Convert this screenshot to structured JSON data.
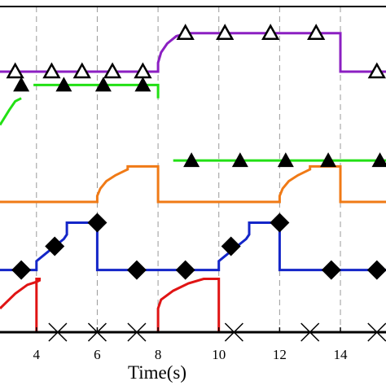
{
  "chart_data": {
    "type": "line",
    "title": "",
    "xlabel": "Time(s)",
    "ylabel": "",
    "xlim": [
      2.8,
      15.5
    ],
    "ylim": [
      0,
      11
    ],
    "x_ticks": [
      4,
      6,
      8,
      10,
      12,
      14
    ],
    "grid": "vertical dashed",
    "colors": {
      "purple": "#8b1fc2",
      "green": "#22e014",
      "orange": "#f07a16",
      "blue": "#1426c8",
      "red": "#e01414",
      "black": "#000000"
    },
    "series": [
      {
        "color": "purple",
        "marker": "open-triangle",
        "points": [
          [
            2.8,
            8.8
          ],
          [
            8.0,
            8.8
          ],
          [
            8.0,
            9.1
          ],
          [
            8.1,
            9.45
          ],
          [
            8.3,
            9.75
          ],
          [
            8.6,
            10.0
          ],
          [
            8.8,
            10.05
          ],
          [
            8.85,
            10.1
          ],
          [
            14.0,
            10.1
          ],
          [
            14.0,
            8.8
          ],
          [
            15.5,
            8.8
          ]
        ],
        "markers": [
          [
            3.3,
            8.8
          ],
          [
            4.5,
            8.8
          ],
          [
            5.5,
            8.8
          ],
          [
            6.5,
            8.8
          ],
          [
            7.5,
            8.8
          ],
          [
            8.9,
            10.1
          ],
          [
            10.2,
            10.1
          ],
          [
            11.7,
            10.1
          ],
          [
            13.2,
            10.1
          ],
          [
            15.2,
            8.8
          ]
        ]
      },
      {
        "color": "green",
        "marker": "filled-triangle",
        "segments": [
          [
            [
              2.8,
              7.0
            ],
            [
              3.1,
              7.5
            ],
            [
              3.3,
              7.8
            ],
            [
              3.5,
              7.9
            ]
          ],
          [
            [
              3.9,
              8.35
            ],
            [
              8.0,
              8.35
            ],
            [
              8.0,
              7.9
            ]
          ],
          [
            [
              8.5,
              5.8
            ],
            [
              15.5,
              5.8
            ]
          ]
        ],
        "markers": [
          [
            3.5,
            8.35
          ],
          [
            4.9,
            8.35
          ],
          [
            6.2,
            8.35
          ],
          [
            7.5,
            8.35
          ],
          [
            9.1,
            5.8
          ],
          [
            10.7,
            5.8
          ],
          [
            12.2,
            5.8
          ],
          [
            13.6,
            5.8
          ],
          [
            15.3,
            5.8
          ]
        ]
      },
      {
        "color": "orange",
        "marker": "none",
        "points": [
          [
            2.8,
            4.4
          ],
          [
            6.0,
            4.4
          ],
          [
            6.0,
            4.6
          ],
          [
            6.1,
            4.85
          ],
          [
            6.3,
            5.1
          ],
          [
            6.6,
            5.3
          ],
          [
            6.9,
            5.45
          ],
          [
            7.0,
            5.5
          ],
          [
            7.0,
            5.6
          ],
          [
            8.0,
            5.6
          ],
          [
            8.0,
            4.4
          ],
          [
            12.0,
            4.4
          ],
          [
            12.0,
            4.6
          ],
          [
            12.1,
            4.85
          ],
          [
            12.3,
            5.1
          ],
          [
            12.6,
            5.3
          ],
          [
            12.9,
            5.45
          ],
          [
            13.0,
            5.5
          ],
          [
            13.0,
            5.6
          ],
          [
            14.0,
            5.6
          ],
          [
            14.0,
            4.4
          ],
          [
            15.5,
            4.4
          ]
        ]
      },
      {
        "color": "blue",
        "marker": "filled-diamond",
        "points": [
          [
            2.8,
            2.1
          ],
          [
            4.0,
            2.1
          ],
          [
            4.0,
            2.4
          ],
          [
            4.3,
            2.65
          ],
          [
            4.6,
            2.9
          ],
          [
            4.9,
            3.15
          ],
          [
            5.0,
            3.3
          ],
          [
            5.0,
            3.7
          ],
          [
            6.0,
            3.7
          ],
          [
            6.0,
            2.1
          ],
          [
            10.0,
            2.1
          ],
          [
            10.0,
            2.4
          ],
          [
            10.3,
            2.65
          ],
          [
            10.6,
            2.9
          ],
          [
            10.9,
            3.15
          ],
          [
            11.0,
            3.3
          ],
          [
            11.0,
            3.7
          ],
          [
            12.0,
            3.7
          ],
          [
            12.0,
            2.1
          ],
          [
            15.5,
            2.1
          ]
        ],
        "markers": [
          [
            3.5,
            2.1
          ],
          [
            4.6,
            2.9
          ],
          [
            6.0,
            3.7
          ],
          [
            7.3,
            2.1
          ],
          [
            8.9,
            2.1
          ],
          [
            10.4,
            2.9
          ],
          [
            12.0,
            3.7
          ],
          [
            13.7,
            2.1
          ],
          [
            15.2,
            2.1
          ]
        ]
      },
      {
        "color": "red",
        "marker": "none",
        "points": [
          [
            2.8,
            0.8
          ],
          [
            3.0,
            1.0
          ],
          [
            3.3,
            1.3
          ],
          [
            3.7,
            1.6
          ],
          [
            4.0,
            1.7
          ],
          [
            4.1,
            1.75
          ],
          [
            4.1,
            1.8
          ],
          [
            4.0,
            1.8
          ],
          [
            4.0,
            0.0
          ],
          [
            8.0,
            0.0
          ],
          [
            8.0,
            0.8
          ],
          [
            8.1,
            1.1
          ],
          [
            8.5,
            1.4
          ],
          [
            9.0,
            1.65
          ],
          [
            9.5,
            1.8
          ],
          [
            10.0,
            1.8
          ],
          [
            10.0,
            0.0
          ],
          [
            15.5,
            0.0
          ]
        ]
      },
      {
        "color": "black",
        "marker": "x",
        "points": [
          [
            2.8,
            0.0
          ],
          [
            15.5,
            0.0
          ]
        ],
        "markers": [
          [
            4.7,
            0.0
          ],
          [
            6.0,
            0.0
          ],
          [
            7.3,
            0.0
          ],
          [
            10.5,
            0.0
          ],
          [
            13.0,
            0.0
          ],
          [
            15.2,
            0.0
          ]
        ]
      }
    ]
  }
}
